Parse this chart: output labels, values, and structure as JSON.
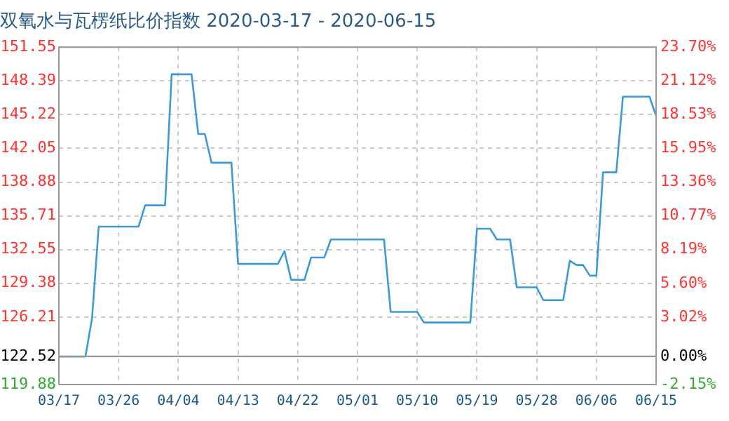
{
  "chart_data": {
    "type": "line",
    "title": "双氧水与瓦楞纸比价指数 2020-03-17 - 2020-06-15",
    "x": [
      "2020-03-17",
      "2020-03-21",
      "2020-03-22",
      "2020-03-23",
      "2020-03-29",
      "2020-03-30",
      "2020-04-02",
      "2020-04-03",
      "2020-04-06",
      "2020-04-07",
      "2020-04-08",
      "2020-04-09",
      "2020-04-12",
      "2020-04-13",
      "2020-04-19",
      "2020-04-20",
      "2020-04-21",
      "2020-04-23",
      "2020-04-24",
      "2020-04-26",
      "2020-04-27",
      "2020-05-05",
      "2020-05-06",
      "2020-05-10",
      "2020-05-11",
      "2020-05-18",
      "2020-05-19",
      "2020-05-21",
      "2020-05-22",
      "2020-05-24",
      "2020-05-25",
      "2020-05-28",
      "2020-05-29",
      "2020-06-01",
      "2020-06-02",
      "2020-06-03",
      "2020-06-04",
      "2020-06-05",
      "2020-06-06",
      "2020-06-07",
      "2020-06-09",
      "2020-06-10",
      "2020-06-14",
      "2020-06-15"
    ],
    "series": [
      {
        "color": "#3c9ad8",
        "values": [
          122.5,
          122.5,
          126.1,
          134.7,
          134.7,
          136.7,
          136.7,
          149.0,
          149.0,
          143.4,
          143.4,
          140.7,
          140.7,
          131.2,
          131.2,
          132.4,
          129.7,
          129.7,
          131.8,
          131.8,
          133.5,
          133.5,
          126.7,
          126.7,
          125.7,
          125.7,
          134.5,
          134.5,
          133.5,
          133.5,
          129.0,
          129.0,
          127.8,
          127.8,
          131.5,
          131.1,
          131.1,
          130.1,
          130.1,
          139.8,
          139.8,
          146.9,
          146.9,
          145.1
        ]
      }
    ],
    "xlim": [
      "2020-03-17",
      "2020-06-15"
    ],
    "xticks": [
      {
        "value": "2020-03-17",
        "label": "03/17"
      },
      {
        "value": "2020-03-26",
        "label": "03/26"
      },
      {
        "value": "2020-04-04",
        "label": "04/04"
      },
      {
        "value": "2020-04-13",
        "label": "04/13"
      },
      {
        "value": "2020-04-22",
        "label": "04/22"
      },
      {
        "value": "2020-05-01",
        "label": "05/01"
      },
      {
        "value": "2020-05-10",
        "label": "05/10"
      },
      {
        "value": "2020-05-19",
        "label": "05/19"
      },
      {
        "value": "2020-05-28",
        "label": "05/28"
      },
      {
        "value": "2020-06-06",
        "label": "06/06"
      },
      {
        "value": "2020-06-15",
        "label": "06/15"
      }
    ],
    "ylim": [
      119.88,
      151.55
    ],
    "yticks": [
      119.88,
      122.52,
      126.21,
      129.38,
      132.55,
      135.71,
      138.88,
      142.05,
      145.22,
      148.39,
      151.55
    ],
    "y2lim": [
      -2.15,
      23.7
    ],
    "y2ticks": [
      {
        "value": -2.15,
        "label": "-2.15%"
      },
      {
        "value": 0,
        "label": "0.00%"
      },
      {
        "value": 3.02,
        "label": "3.02%"
      },
      {
        "value": 5.6,
        "label": "5.60%"
      },
      {
        "value": 8.19,
        "label": "8.19%"
      },
      {
        "value": 10.77,
        "label": "10.77%"
      },
      {
        "value": 13.36,
        "label": "13.36%"
      },
      {
        "value": 15.95,
        "label": "15.95%"
      },
      {
        "value": 18.53,
        "label": "18.53%"
      },
      {
        "value": 21.12,
        "label": "21.12%"
      },
      {
        "value": 23.7,
        "label": "23.70%"
      }
    ],
    "ref_lines": [
      {
        "axis": "y",
        "value": 122.52,
        "color": "#999999"
      }
    ],
    "grid": true,
    "marker": "none",
    "line_style": "solid",
    "legend": false
  }
}
